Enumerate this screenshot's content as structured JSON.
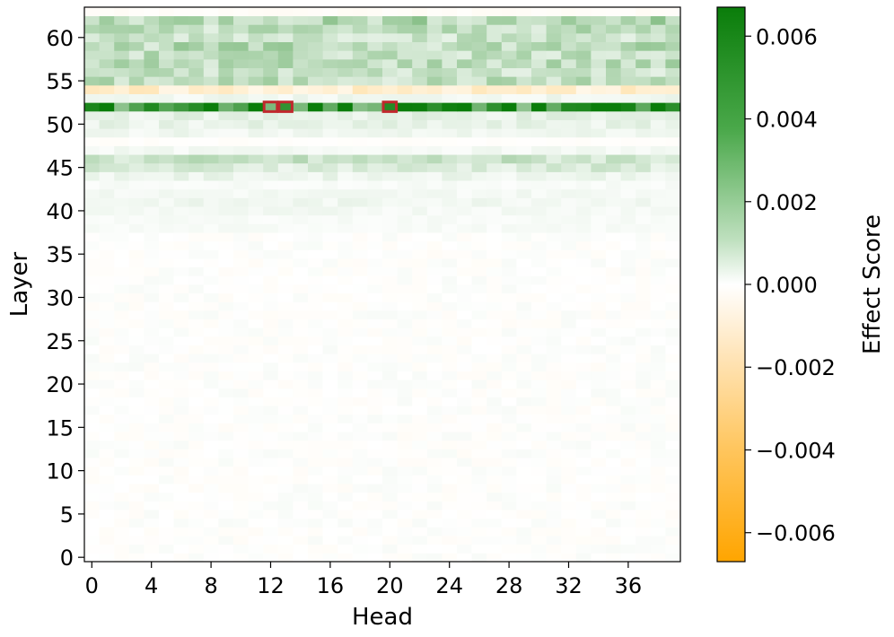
{
  "chart_data": {
    "type": "heatmap",
    "xlabel": "Head",
    "ylabel": "Layer",
    "x_range": [
      0,
      39
    ],
    "y_range": [
      0,
      63
    ],
    "x_ticks": [
      "0",
      "4",
      "8",
      "12",
      "16",
      "20",
      "24",
      "28",
      "32",
      "36"
    ],
    "y_ticks": [
      "0",
      "5",
      "10",
      "15",
      "20",
      "25",
      "30",
      "35",
      "40",
      "45",
      "50",
      "55",
      "60"
    ],
    "colorbar": {
      "label": "Effect Score",
      "range": [
        -0.0067,
        0.0067
      ],
      "ticks": [
        "0.006",
        "0.004",
        "0.002",
        "0.000",
        "−0.002",
        "−0.004",
        "−0.006"
      ],
      "colors": {
        "negative": "#ffa500",
        "zero": "#ffffff",
        "positive": "#0a7d0a"
      }
    },
    "layer_profile": [
      {
        "layer": 63,
        "mean": -0.0002
      },
      {
        "layer": 62,
        "mean": 0.0021
      },
      {
        "layer": 61,
        "mean": 0.0017
      },
      {
        "layer": 60,
        "mean": 0.0015
      },
      {
        "layer": 59,
        "mean": 0.0019
      },
      {
        "layer": 58,
        "mean": 0.0017
      },
      {
        "layer": 57,
        "mean": 0.0018
      },
      {
        "layer": 56,
        "mean": 0.0015
      },
      {
        "layer": 55,
        "mean": 0.0017
      },
      {
        "layer": 54,
        "mean": -0.0012
      },
      {
        "layer": 53,
        "mean": 0.0004
      },
      {
        "layer": 52,
        "mean": 0.006
      },
      {
        "layer": 51,
        "mean": 0.0007
      },
      {
        "layer": 50,
        "mean": 0.0006
      },
      {
        "layer": 49,
        "mean": 0.0004
      },
      {
        "layer": 48,
        "mean": -0.0001
      },
      {
        "layer": 47,
        "mean": 0.0003
      },
      {
        "layer": 46,
        "mean": 0.0014
      },
      {
        "layer": 45,
        "mean": 0.001
      },
      {
        "layer": 44,
        "mean": 0.0005
      },
      {
        "layer": 43,
        "mean": 0.0002
      },
      {
        "layer": 42,
        "mean": 0.0003
      },
      {
        "layer": 41,
        "mean": 0.0004
      },
      {
        "layer": 40,
        "mean": 0.0003
      },
      {
        "layer": 39,
        "mean": 0.0002
      },
      {
        "layer": 38,
        "mean": 0.0002
      }
    ],
    "low_layers_mean": 0.0,
    "highlighted_cells": [
      {
        "head": 12,
        "layer": 52
      },
      {
        "head": 13,
        "layer": 52
      },
      {
        "head": 20,
        "layer": 52
      }
    ]
  }
}
